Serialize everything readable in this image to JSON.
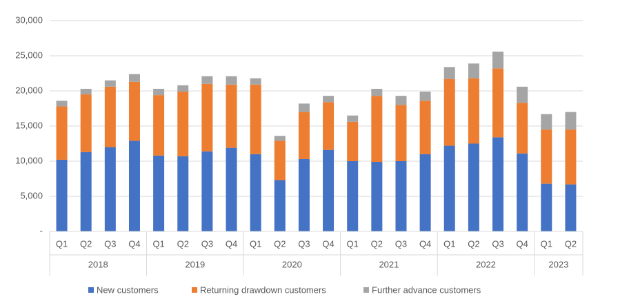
{
  "chart_data": {
    "type": "stacked-bar",
    "groups": [
      {
        "name": "2018",
        "categories": [
          "Q1",
          "Q2",
          "Q3",
          "Q4"
        ]
      },
      {
        "name": "2019",
        "categories": [
          "Q1",
          "Q2",
          "Q3",
          "Q4"
        ]
      },
      {
        "name": "2020",
        "categories": [
          "Q1",
          "Q2",
          "Q3",
          "Q4"
        ]
      },
      {
        "name": "2021",
        "categories": [
          "Q1",
          "Q2",
          "Q3",
          "Q4"
        ]
      },
      {
        "name": "2022",
        "categories": [
          "Q1",
          "Q2",
          "Q3",
          "Q4"
        ]
      },
      {
        "name": "2023",
        "categories": [
          "Q1",
          "Q2"
        ]
      }
    ],
    "series": [
      {
        "name": "New customers",
        "color": "#4472c4",
        "values": [
          10200,
          11300,
          12000,
          12900,
          10800,
          10700,
          11400,
          11900,
          11000,
          7300,
          10300,
          11600,
          10000,
          9900,
          10000,
          11000,
          12200,
          12500,
          13400,
          11100,
          6800,
          6700
        ]
      },
      {
        "name": "Returning drawdown customers",
        "color": "#ed7d31",
        "values": [
          7600,
          8200,
          8600,
          8400,
          8600,
          9200,
          9600,
          9000,
          9900,
          5600,
          6700,
          6800,
          5600,
          9400,
          8000,
          7600,
          9500,
          9300,
          9800,
          7200,
          7700,
          7800
        ]
      },
      {
        "name": "Further advance customers",
        "color": "#a5a5a5",
        "values": [
          800,
          800,
          900,
          1100,
          900,
          900,
          1100,
          1200,
          900,
          700,
          1200,
          900,
          900,
          1000,
          1300,
          1300,
          1700,
          2100,
          2400,
          2300,
          2200,
          2500
        ]
      }
    ],
    "ylim": [
      0,
      30000
    ],
    "yticks": [
      {
        "value": 0,
        "label": "-"
      },
      {
        "value": 5000,
        "label": "5,000"
      },
      {
        "value": 10000,
        "label": "10,000"
      },
      {
        "value": 15000,
        "label": "15,000"
      },
      {
        "value": 20000,
        "label": "20,000"
      },
      {
        "value": 25000,
        "label": "25,000"
      },
      {
        "value": 30000,
        "label": "30,000"
      }
    ],
    "grid": true,
    "legend": "bottom"
  }
}
